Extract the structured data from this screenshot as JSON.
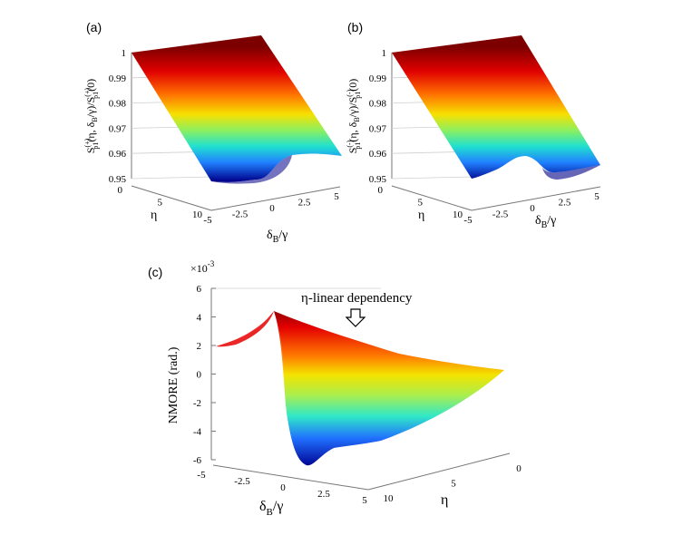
{
  "chart_data": [
    {
      "type": "surface",
      "panel_label": "(a)",
      "zlabel": "S_p1^(+)(η, δ_B/γ)/S_p1^(+)(0)",
      "xlabel": "δ_B/γ",
      "ylabel": "η",
      "x_ticks": [
        "-5",
        "-2.5",
        "0",
        "2.5",
        "5"
      ],
      "y_ticks": [
        "0",
        "5",
        "10"
      ],
      "z_ticks": [
        "0.95",
        "0.96",
        "0.97",
        "0.98",
        "0.99",
        "1"
      ],
      "x_range": [
        -5,
        5
      ],
      "y_range": [
        0,
        10
      ],
      "z_range": [
        0.95,
        1.0
      ],
      "feature": "dip near δ_B/γ ≈ 0 at η = 10"
    },
    {
      "type": "surface",
      "panel_label": "(b)",
      "zlabel": "S_p1^(-)(η, δ_B/γ)/S_p1^(-)(0)",
      "xlabel": "δ_B/γ",
      "ylabel": "η",
      "x_ticks": [
        "-5",
        "-2.5",
        "0",
        "2.5",
        "5"
      ],
      "y_ticks": [
        "0",
        "5",
        "10"
      ],
      "z_ticks": [
        "0.95",
        "0.96",
        "0.97",
        "0.98",
        "0.99",
        "1"
      ],
      "x_range": [
        -5,
        5
      ],
      "y_range": [
        0,
        10
      ],
      "z_range": [
        0.95,
        1.0
      ],
      "feature": "dip near δ_B/γ ≈ 0 at η = 10"
    },
    {
      "type": "surface",
      "panel_label": "(c)",
      "zlabel": "NMORE (rad.)",
      "xlabel": "δ_B/γ",
      "ylabel": "η",
      "z_multiplier": "×10^-3",
      "x_ticks": [
        "-5",
        "-2.5",
        "0",
        "2.5",
        "5"
      ],
      "y_ticks": [
        "10",
        "5",
        "0"
      ],
      "z_ticks": [
        "-6",
        "-4",
        "-2",
        "0",
        "2",
        "4",
        "6"
      ],
      "x_range": [
        -5,
        5
      ],
      "y_range": [
        0,
        10
      ],
      "z_range": [
        -6,
        6
      ],
      "annotation": "η-linear dependency",
      "feature": "dispersive profile: peak ≈ 4.3 and trough ≈ -5.9 near δ_B/γ = 0 at η = 10, flat ≈ 2 at δ_B/γ = -5"
    }
  ]
}
